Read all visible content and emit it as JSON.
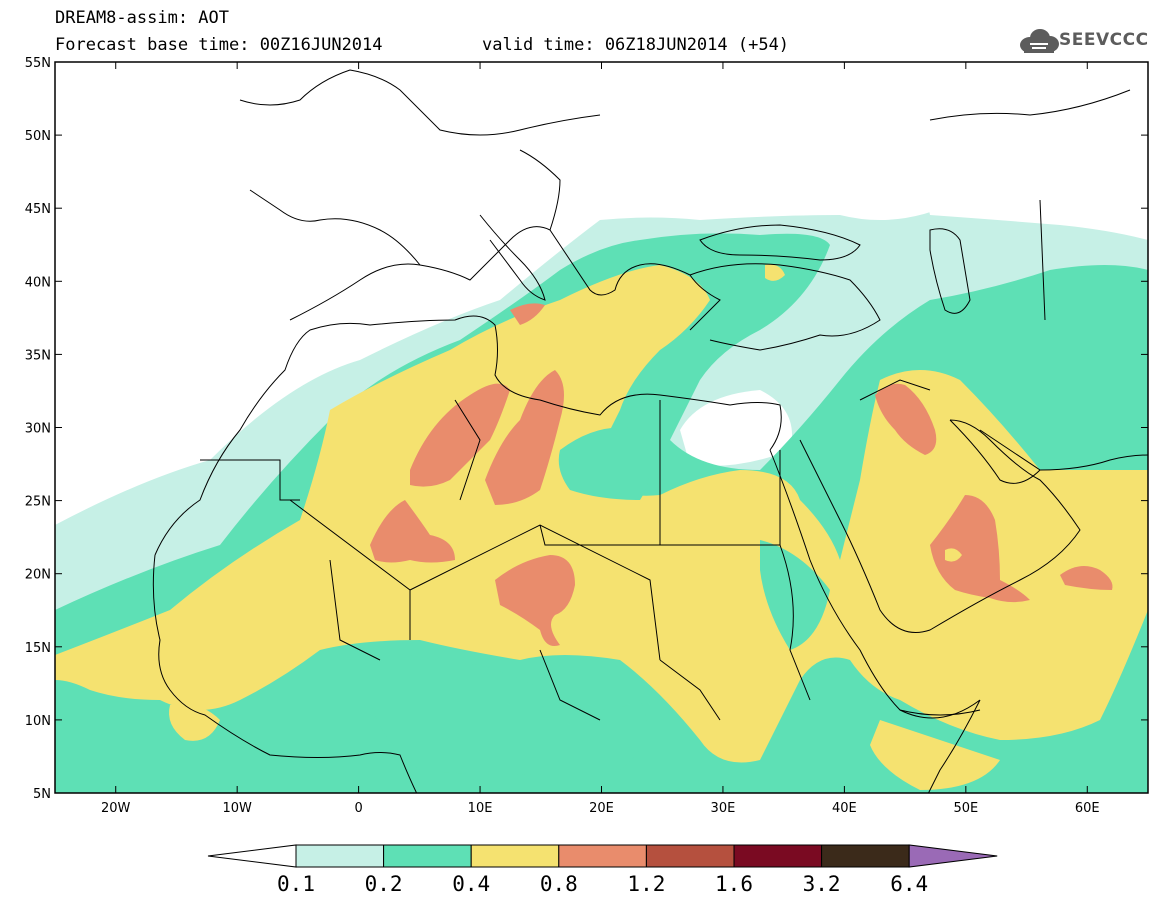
{
  "header": {
    "line1": "DREAM8-assim: AOT",
    "line2": "Forecast base time: 00Z16JUN2014",
    "valid": "valid time: 06Z18JUN2014 (+54)",
    "logo_text": "SEEVCCC"
  },
  "map": {
    "lon_range": [
      -25,
      65
    ],
    "lat_range": [
      5,
      55
    ],
    "lat_labels": [
      "55N",
      "50N",
      "45N",
      "40N",
      "35N",
      "30N",
      "25N",
      "20N",
      "15N",
      "10N",
      "5N"
    ],
    "lon_labels": [
      "20W",
      "10W",
      "0",
      "10E",
      "20E",
      "30E",
      "40E",
      "50E",
      "60E"
    ]
  },
  "colorbar": {
    "labels": [
      "0.1",
      "0.2",
      "0.4",
      "0.8",
      "1.2",
      "1.6",
      "3.2",
      "6.4"
    ],
    "colors": [
      "#c6f0e6",
      "#5ee0b5",
      "#f5e270",
      "#e98c6c",
      "#b5503e",
      "#7a0a22",
      "#3b2a1a",
      "#9a6ab6"
    ],
    "under_color": "#ffffff"
  },
  "colors": {
    "level_0_1": "#c6f0e6",
    "level_0_2": "#5ee0b5",
    "level_0_4": "#f5e270",
    "level_0_8": "#e98c6c",
    "border": "#000000"
  }
}
